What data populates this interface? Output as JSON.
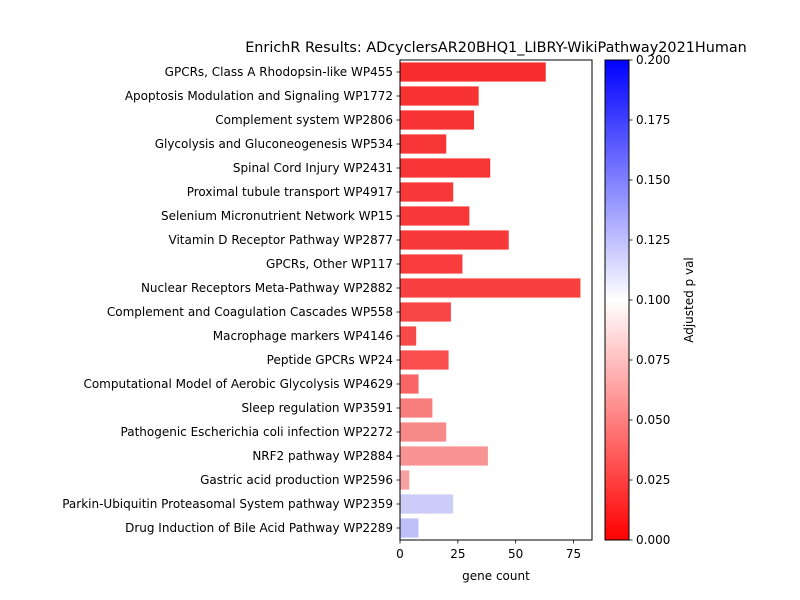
{
  "chart_data": {
    "type": "bar",
    "orientation": "horizontal",
    "title": "EnrichR Results: ADcyclersAR20BHQ1_LIBRY-WikiPathway2021Human",
    "xlabel": "gene count",
    "ylabel": "",
    "xlim": [
      0,
      83
    ],
    "x_ticks": [
      0,
      25,
      50,
      75
    ],
    "grid": false,
    "categories": [
      "GPCRs, Class A Rhodopsin-like WP455",
      "Apoptosis Modulation and Signaling WP1772",
      "Complement system WP2806",
      "Glycolysis and Gluconeogenesis WP534",
      "Spinal Cord Injury WP2431",
      "Proximal tubule transport WP4917",
      "Selenium Micronutrient Network WP15",
      "Vitamin D Receptor Pathway WP2877",
      "GPCRs, Other WP117",
      "Nuclear Receptors Meta-Pathway WP2882",
      "Complement and Coagulation Cascades WP558",
      "Macrophage markers WP4146",
      "Peptide GPCRs WP24",
      "Computational Model of Aerobic Glycolysis WP4629",
      "Sleep regulation WP3591",
      "Pathogenic Escherichia coli infection WP2272",
      "NRF2 pathway WP2884",
      "Gastric acid production WP2596",
      "Parkin-Ubiquitin Proteasomal System pathway WP2359",
      "Drug Induction of Bile Acid Pathway WP2289"
    ],
    "values": [
      63,
      34,
      32,
      20,
      39,
      23,
      30,
      47,
      27,
      78,
      22,
      7,
      21,
      8,
      14,
      20,
      38,
      4,
      23,
      8
    ],
    "adjusted_p": [
      0.01,
      0.011,
      0.012,
      0.013,
      0.013,
      0.014,
      0.014,
      0.015,
      0.016,
      0.018,
      0.02,
      0.022,
      0.024,
      0.035,
      0.045,
      0.05,
      0.055,
      0.06,
      0.12,
      0.125
    ],
    "colorbar": {
      "label": "Adjusted p val",
      "range": [
        0,
        0.2
      ],
      "ticks": [
        "0.000",
        "0.025",
        "0.050",
        "0.075",
        "0.100",
        "0.125",
        "0.150",
        "0.175",
        "0.200"
      ],
      "colormap": [
        "#ff0000",
        "#ffffff",
        "#0000ff"
      ]
    }
  }
}
